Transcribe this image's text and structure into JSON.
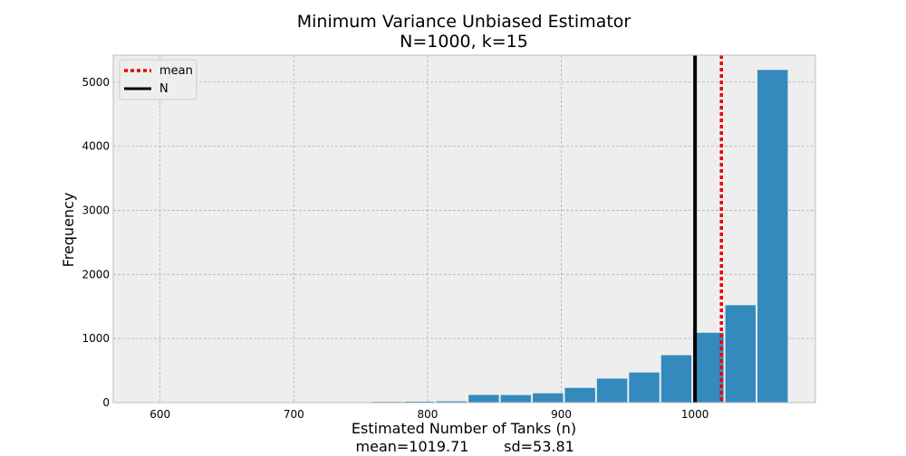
{
  "chart_data": {
    "type": "bar",
    "title_line1": "Minimum Variance Unbiased Estimator",
    "title_line2": "N=1000, k=15",
    "xlabel": "Estimated Number of Tanks (n)",
    "ylabel": "Frequency",
    "footer_mean": "mean=1019.71",
    "footer_sd": "sd=53.81",
    "xlim": [
      565,
      1090
    ],
    "ylim": [
      0,
      5420
    ],
    "xticks": [
      600,
      700,
      800,
      900,
      1000
    ],
    "yticks": [
      0,
      1000,
      2000,
      3000,
      4000,
      5000
    ],
    "bins": [
      {
        "x0": 758,
        "x1": 782,
        "value": 12
      },
      {
        "x0": 782,
        "x1": 806,
        "value": 15
      },
      {
        "x0": 806,
        "x1": 830,
        "value": 20
      },
      {
        "x0": 830,
        "x1": 854,
        "value": 120
      },
      {
        "x0": 854,
        "x1": 878,
        "value": 118
      },
      {
        "x0": 878,
        "x1": 902,
        "value": 145
      },
      {
        "x0": 902,
        "x1": 926,
        "value": 230
      },
      {
        "x0": 926,
        "x1": 950,
        "value": 375
      },
      {
        "x0": 950,
        "x1": 974,
        "value": 470
      },
      {
        "x0": 974,
        "x1": 998,
        "value": 740
      },
      {
        "x0": 998,
        "x1": 1022,
        "value": 1090
      },
      {
        "x0": 1022,
        "x1": 1046,
        "value": 1520
      },
      {
        "x0": 1046,
        "x1": 1070,
        "value": 5190
      }
    ],
    "mean": 1019.71,
    "N": 1000,
    "legend": {
      "placement": "upper-left",
      "items": [
        {
          "label": "mean",
          "color": "#ee0000",
          "style": "dotted"
        },
        {
          "label": "N",
          "color": "#000000",
          "style": "solid"
        }
      ]
    },
    "grid": true,
    "colors": {
      "bar": "#348abd",
      "axes_bg": "#eeeeee",
      "grid": "#b2b2b2"
    }
  }
}
